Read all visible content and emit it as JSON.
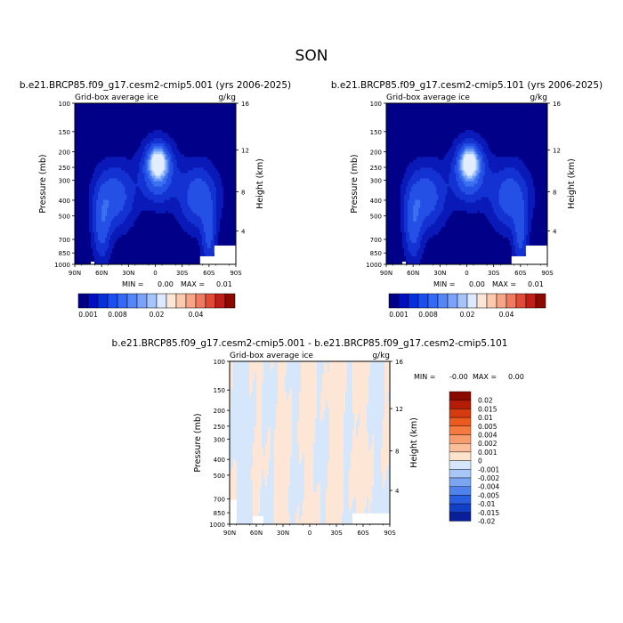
{
  "figure": {
    "season_title": "SON",
    "min_label": "MIN =",
    "max_label": "MAX ="
  },
  "chart_data": [
    {
      "type": "heatmap",
      "title": "b.e21.BRCP85.f09_g17.cesm2-cmip5.001 (yrs 2006-2025)",
      "subtitle_left": "Grid-box average ice",
      "subtitle_right": "g/kg",
      "xlabel": "",
      "ylabel": "Pressure (mb)",
      "ylabel_right": "Height (km)",
      "x_ticks": [
        "90N",
        "60N",
        "30N",
        "0",
        "30S",
        "60S",
        "90S"
      ],
      "y_ticks": [
        "100",
        "150",
        "200",
        "250",
        "300",
        "400",
        "500",
        "700",
        "850",
        "1000"
      ],
      "height_ticks": [
        "16",
        "12",
        "8",
        "4"
      ],
      "xlim": [
        90,
        -90
      ],
      "ylim": [
        1000,
        100
      ],
      "min": "0.00",
      "max": "0.01",
      "colorbar_labels": [
        "0.001",
        "0.008",
        "0.02",
        "0.04"
      ],
      "max_location": {
        "lat": -3,
        "pressure": 230
      }
    },
    {
      "type": "heatmap",
      "title": "b.e21.BRCP85.f09_g17.cesm2-cmip5.101 (yrs 2006-2025)",
      "subtitle_left": "Grid-box average ice",
      "subtitle_right": "g/kg",
      "xlabel": "",
      "ylabel": "Pressure (mb)",
      "ylabel_right": "Height (km)",
      "x_ticks": [
        "90N",
        "60N",
        "30N",
        "0",
        "30S",
        "60S",
        "90S"
      ],
      "y_ticks": [
        "100",
        "150",
        "200",
        "250",
        "300",
        "400",
        "500",
        "700",
        "850",
        "1000"
      ],
      "height_ticks": [
        "16",
        "12",
        "8",
        "4"
      ],
      "xlim": [
        90,
        -90
      ],
      "ylim": [
        1000,
        100
      ],
      "min": "0.00",
      "max": "0.01",
      "colorbar_labels": [
        "0.001",
        "0.008",
        "0.02",
        "0.04"
      ],
      "max_location": {
        "lat": -3,
        "pressure": 230
      }
    },
    {
      "type": "heatmap",
      "title": "b.e21.BRCP85.f09_g17.cesm2-cmip5.001 - b.e21.BRCP85.f09_g17.cesm2-cmip5.101",
      "subtitle_left": "Grid-box average ice",
      "subtitle_right": "g/kg",
      "xlabel": "",
      "ylabel": "Pressure (mb)",
      "ylabel_right": "Height (km)",
      "x_ticks": [
        "90N",
        "60N",
        "30N",
        "0",
        "30S",
        "60S",
        "90S"
      ],
      "y_ticks": [
        "100",
        "150",
        "200",
        "250",
        "300",
        "400",
        "500",
        "700",
        "850",
        "1000"
      ],
      "height_ticks": [
        "16",
        "12",
        "8",
        "4"
      ],
      "xlim": [
        90,
        -90
      ],
      "ylim": [
        1000,
        100
      ],
      "min": "-0.00",
      "max": "0.00",
      "colorbar_labels": [
        "0.02",
        "0.015",
        "0.01",
        "0.005",
        "0.004",
        "0.002",
        "0.001",
        "0",
        "-0.001",
        "-0.002",
        "-0.004",
        "-0.005",
        "-0.01",
        "-0.015",
        "-0.02"
      ]
    }
  ],
  "colors": {
    "abs_scale": [
      "#000088",
      "#0010c0",
      "#0530dc",
      "#1a4ef0",
      "#3468f6",
      "#5486f8",
      "#7aa2fa",
      "#a6c4fc",
      "#dce9fe",
      "#fde6d6",
      "#fcc8ae",
      "#f8a486",
      "#ef7a60",
      "#e04a36",
      "#c01e16",
      "#8c0800"
    ],
    "diff_scale": [
      "#8a0a00",
      "#b41c08",
      "#d63a10",
      "#ec5a20",
      "#f47a42",
      "#f89c6e",
      "#fbbd9a",
      "#fde3cc",
      "#d6e6fb",
      "#a8c6f7",
      "#7ba5f2",
      "#4f82ec",
      "#2a5ee0",
      "#133ec8",
      "#0a1e9c"
    ],
    "field_levels": [
      "#000088",
      "#0a1ab8",
      "#1432d2",
      "#2450e6",
      "#3b70f0",
      "#6c9af6",
      "#a8c8fb",
      "#e2eeff"
    ],
    "diff_pos": "#fde6d6",
    "diff_neg": "#d6e6fb",
    "axis": "#000000"
  }
}
